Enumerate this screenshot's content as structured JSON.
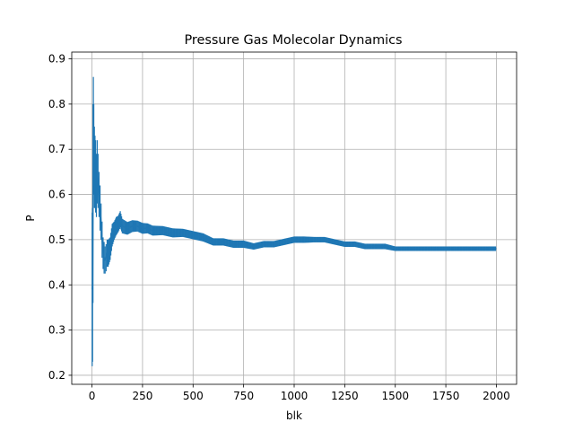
{
  "chart_data": {
    "type": "line",
    "title": "Pressure Gas Molecolar Dynamics",
    "xlabel": "blk",
    "ylabel": "P",
    "xlim": [
      -100,
      2100
    ],
    "ylim": [
      0.18,
      0.915
    ],
    "grid": true,
    "xticks": [
      0,
      250,
      500,
      750,
      1000,
      1250,
      1500,
      1750,
      2000
    ],
    "yticks": [
      0.2,
      0.3,
      0.4,
      0.5,
      0.6,
      0.7,
      0.8,
      0.9
    ],
    "series": [
      {
        "color": "#1f77b4",
        "error_bars": true,
        "x": [
          1,
          3,
          5,
          7,
          9,
          12,
          15,
          18,
          22,
          26,
          30,
          35,
          40,
          45,
          50,
          55,
          60,
          65,
          70,
          75,
          80,
          90,
          100,
          110,
          120,
          130,
          140,
          150,
          175,
          200,
          225,
          250,
          275,
          300,
          350,
          400,
          450,
          500,
          550,
          600,
          650,
          700,
          750,
          800,
          850,
          900,
          950,
          1000,
          1050,
          1100,
          1150,
          1200,
          1250,
          1300,
          1350,
          1400,
          1450,
          1500,
          1550,
          1600,
          1650,
          1700,
          1750,
          1800,
          1850,
          1900,
          1950,
          2000
        ],
        "y": [
          0.39,
          0.4,
          0.58,
          0.74,
          0.7,
          0.66,
          0.65,
          0.64,
          0.62,
          0.65,
          0.63,
          0.6,
          0.57,
          0.54,
          0.5,
          0.47,
          0.46,
          0.455,
          0.46,
          0.47,
          0.47,
          0.48,
          0.51,
          0.52,
          0.53,
          0.535,
          0.545,
          0.53,
          0.525,
          0.53,
          0.53,
          0.525,
          0.525,
          0.52,
          0.52,
          0.515,
          0.515,
          0.51,
          0.505,
          0.495,
          0.495,
          0.49,
          0.49,
          0.485,
          0.49,
          0.49,
          0.495,
          0.5,
          0.5,
          0.5,
          0.5,
          0.495,
          0.49,
          0.49,
          0.485,
          0.485,
          0.485,
          0.48,
          0.48,
          0.48,
          0.48,
          0.48,
          0.48,
          0.48,
          0.48,
          0.48,
          0.48,
          0.48
        ],
        "err": [
          0.17,
          0.17,
          0.22,
          0.12,
          0.1,
          0.09,
          0.08,
          0.08,
          0.07,
          0.07,
          0.06,
          0.05,
          0.05,
          0.04,
          0.04,
          0.035,
          0.035,
          0.03,
          0.03,
          0.03,
          0.03,
          0.025,
          0.025,
          0.02,
          0.02,
          0.018,
          0.018,
          0.016,
          0.014,
          0.013,
          0.012,
          0.012,
          0.011,
          0.011,
          0.01,
          0.01,
          0.009,
          0.009,
          0.009,
          0.008,
          0.008,
          0.008,
          0.008,
          0.007,
          0.007,
          0.007,
          0.007,
          0.007,
          0.007,
          0.006,
          0.006,
          0.006,
          0.006,
          0.006,
          0.006,
          0.006,
          0.006,
          0.005,
          0.005,
          0.005,
          0.005,
          0.005,
          0.005,
          0.005,
          0.005,
          0.005,
          0.005,
          0.005
        ]
      }
    ]
  }
}
